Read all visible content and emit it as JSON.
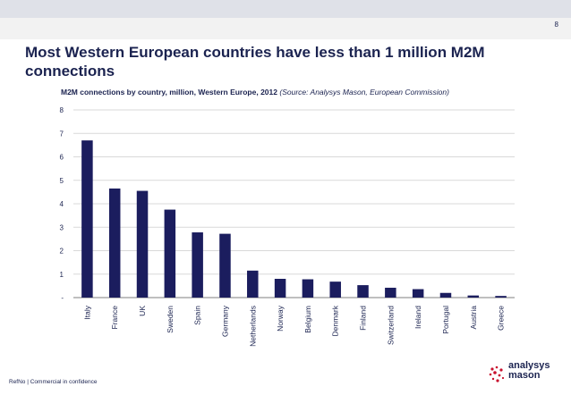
{
  "page": {
    "number": "8"
  },
  "slide": {
    "title": "Most Western European countries have less than 1 million M2M connections"
  },
  "chart_title": {
    "main": "M2M connections by country, million, Western Europe, 2012 ",
    "source": "(Source: Analysys Mason, European Commission)"
  },
  "footer": {
    "text": "RefNo | Commercial in confidence"
  },
  "logo": {
    "line1": "analysys",
    "line2": "mason"
  },
  "colors": {
    "bar": "#1b1d5e",
    "accent": "#c8102e",
    "text": "#1b2350"
  },
  "chart_data": {
    "type": "bar",
    "title": "M2M connections by country, million, Western Europe, 2012",
    "categories": [
      "Italy",
      "France",
      "UK",
      "Sweden",
      "Spain",
      "Germany",
      "Netherlands",
      "Norway",
      "Belgium",
      "Denmark",
      "Finland",
      "Switzerland",
      "Ireland",
      "Portugal",
      "Austria",
      "Greece"
    ],
    "values": [
      6.7,
      4.65,
      4.55,
      3.75,
      2.78,
      2.72,
      1.15,
      0.8,
      0.78,
      0.68,
      0.53,
      0.42,
      0.36,
      0.2,
      0.09,
      0.07
    ],
    "yticks": [
      "-",
      "1",
      "2",
      "3",
      "4",
      "5",
      "6",
      "7",
      "8"
    ],
    "ylim": [
      0,
      8
    ],
    "xlabel": "",
    "ylabel": "",
    "grid": true
  }
}
